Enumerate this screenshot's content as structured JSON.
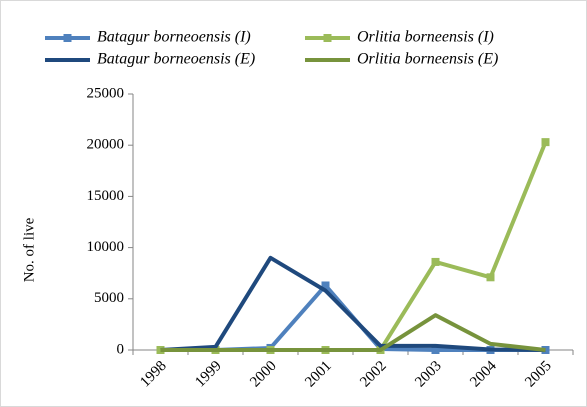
{
  "chart_data": {
    "type": "line",
    "categories": [
      "1998",
      "1999",
      "2000",
      "2001",
      "2002",
      "2003",
      "2004",
      "2005"
    ],
    "ylabel": "No. of live",
    "ylim": [
      0,
      25000
    ],
    "yticks": [
      0,
      5000,
      10000,
      15000,
      20000,
      25000
    ],
    "series": [
      {
        "name": "Batagur borneoensis (I)",
        "color": "#4f81bd",
        "marker": "square",
        "values": [
          0,
          0,
          200,
          6300,
          100,
          0,
          0,
          0
        ]
      },
      {
        "name": "Orlitia borneensis (I)",
        "color": "#9bbb59",
        "marker": "square",
        "values": [
          0,
          0,
          0,
          0,
          0,
          8600,
          7100,
          20300
        ]
      },
      {
        "name": "Batagur borneoensis (E)",
        "color": "#1f497d",
        "values": [
          0,
          300,
          9000,
          5800,
          400,
          400,
          50,
          0
        ]
      },
      {
        "name": "Orlitia borneensis (E)",
        "color": "#77933c",
        "values": [
          0,
          0,
          0,
          0,
          0,
          3400,
          600,
          0
        ]
      }
    ]
  }
}
